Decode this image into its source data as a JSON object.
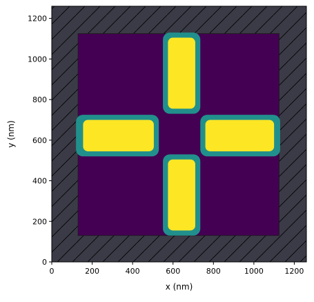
{
  "chart_data": {
    "type": "heatmap",
    "title": "",
    "xlabel": "x (nm)",
    "ylabel": "y (nm)",
    "xlim": [
      0,
      1260
    ],
    "ylim": [
      0,
      1260
    ],
    "xticks": [
      0,
      200,
      400,
      600,
      800,
      1000,
      1200
    ],
    "yticks": [
      0,
      200,
      400,
      600,
      800,
      1000,
      1200
    ],
    "xtick_labels": [
      "0",
      "200",
      "400",
      "600",
      "800",
      "1000",
      "1200"
    ],
    "ytick_labels": [
      "0",
      "200",
      "400",
      "600",
      "800",
      "1000",
      "1200"
    ],
    "grid": false,
    "legend": "none",
    "colors": {
      "background_hatch_fill": "#3b3b47",
      "hatch_line": "#000000",
      "substrate": "#440154",
      "shell": "#21908c",
      "core": "#fde725"
    },
    "substrate_region": {
      "x": [
        130,
        1125
      ],
      "y": [
        130,
        1125
      ]
    },
    "arms": [
      {
        "name": "top",
        "shell": {
          "x": [
            550,
            735
          ],
          "y": [
            730,
            1130
          ]
        },
        "core": {
          "x": [
            575,
            710
          ],
          "y": [
            755,
            1105
          ]
        }
      },
      {
        "name": "bottom",
        "shell": {
          "x": [
            550,
            735
          ],
          "y": [
            130,
            530
          ]
        },
        "core": {
          "x": [
            575,
            710
          ],
          "y": [
            155,
            505
          ]
        }
      },
      {
        "name": "left",
        "shell": {
          "x": [
            120,
            530
          ],
          "y": [
            520,
            725
          ]
        },
        "core": {
          "x": [
            155,
            505
          ],
          "y": [
            545,
            700
          ]
        }
      },
      {
        "name": "right",
        "shell": {
          "x": [
            735,
            1130
          ],
          "y": [
            520,
            725
          ]
        },
        "core": {
          "x": [
            760,
            1100
          ],
          "y": [
            545,
            700
          ]
        }
      }
    ]
  }
}
